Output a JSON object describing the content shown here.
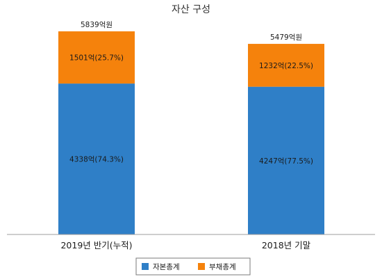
{
  "chart_data": {
    "type": "bar",
    "stacked": true,
    "title": "자산 구성",
    "categories": [
      "2019년 반기(누적)",
      "2018년 기말"
    ],
    "series": [
      {
        "name": "자본총계",
        "values": [
          4338,
          4247
        ],
        "labels": [
          "4338억(74.3%)",
          "4247억(77.5%)"
        ],
        "color": "#2f7fc7"
      },
      {
        "name": "부채총계",
        "values": [
          1501,
          1232
        ],
        "labels": [
          "1501억(25.7%)",
          "1232억(22.5%)"
        ],
        "color": "#f5820c"
      }
    ],
    "totals": [
      5839,
      5479
    ],
    "total_labels": [
      "5839억원",
      "5479억원"
    ],
    "unit": "억원",
    "ylim": [
      0,
      6000
    ],
    "grid": false,
    "legend_position": "bottom"
  }
}
